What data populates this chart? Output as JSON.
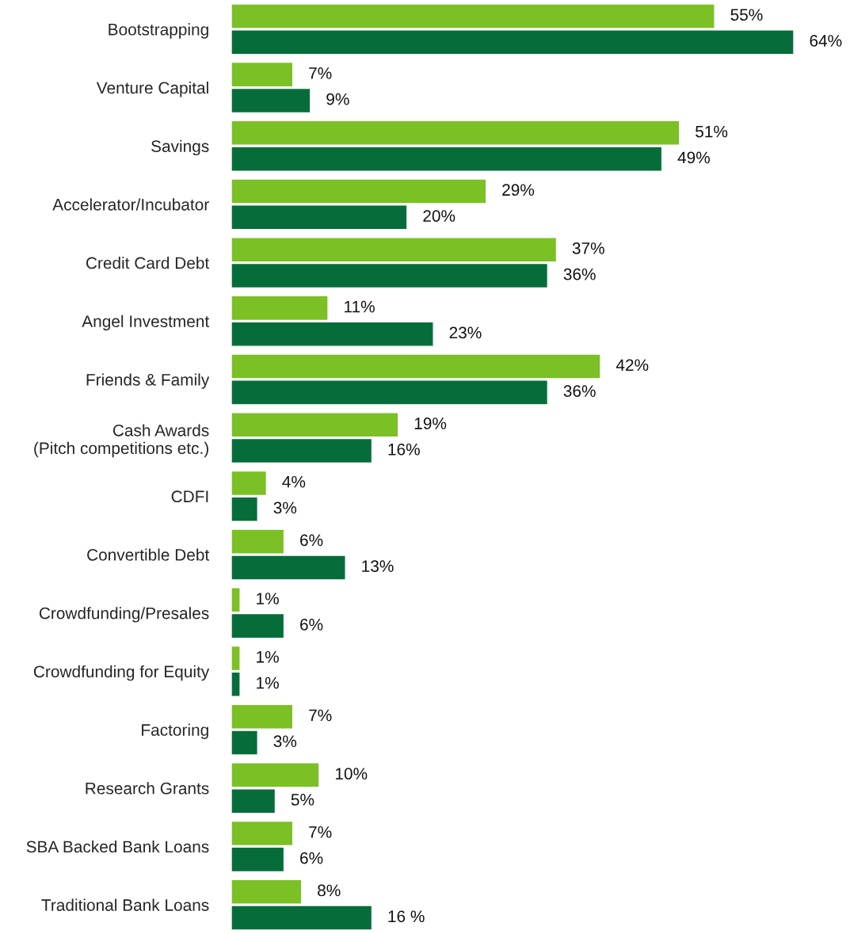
{
  "chart_data": {
    "type": "bar",
    "orientation": "horizontal",
    "categories": [
      "Bootstrapping",
      "Venture Capital",
      "Savings",
      "Accelerator/Incubator",
      "Credit Card Debt",
      "Angel Investment",
      "Friends & Family",
      "Cash Awards\n(Pitch competitions etc.)",
      "CDFI",
      "Convertible Debt",
      "Crowdfunding/Presales",
      "Crowdfunding for Equity",
      "Factoring",
      "Research Grants",
      "SBA Backed Bank Loans",
      "Traditional Bank Loans"
    ],
    "series": [
      {
        "color": "#7bc024",
        "values": [
          55,
          7,
          51,
          29,
          37,
          11,
          42,
          19,
          4,
          6,
          1,
          1,
          7,
          10,
          7,
          8
        ],
        "value_labels": [
          "55%",
          "7%",
          "51%",
          "29%",
          "37%",
          "11%",
          "42%",
          "19%",
          "4%",
          "6%",
          "1%",
          "1%",
          "7%",
          "10%",
          "7%",
          "8%"
        ]
      },
      {
        "color": "#066d3a",
        "values": [
          64,
          9,
          49,
          20,
          36,
          23,
          36,
          16,
          3,
          13,
          6,
          1,
          3,
          5,
          6,
          16
        ],
        "value_labels": [
          "64%",
          "9%",
          "49%",
          "20%",
          "36%",
          "23%",
          "36%",
          "16%",
          "3%",
          "13%",
          "6%",
          "1%",
          "3%",
          "5%",
          "6%",
          "16 %"
        ]
      }
    ],
    "tick_labels": "y",
    "grid": false,
    "legend": false
  }
}
